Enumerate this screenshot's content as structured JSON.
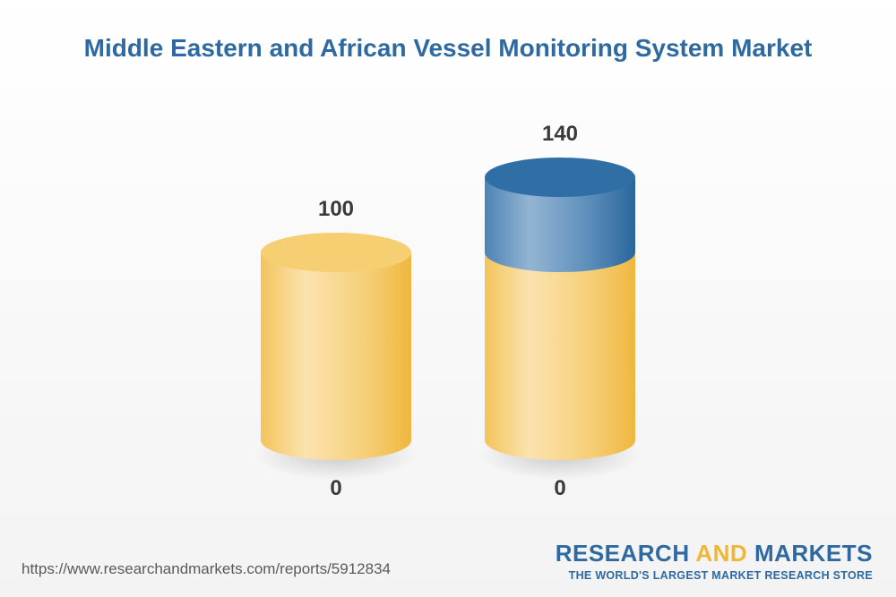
{
  "chart_data": {
    "type": "bar",
    "title": "Middle Eastern and African Vessel Monitoring System Market",
    "categories": [
      "",
      ""
    ],
    "series": [
      {
        "values": [
          100,
          100
        ]
      },
      {
        "values": [
          0,
          40
        ]
      }
    ],
    "totals": [
      100,
      140
    ],
    "base_labels": [
      "0",
      "0"
    ],
    "value_labels": [
      "100",
      "140"
    ],
    "colors": {
      "base": "#f2bd4a",
      "growth": "#2f6fa5",
      "title": "#2e6aa1"
    }
  },
  "footer": {
    "source_url": "https://www.researchandmarkets.com/reports/5912834",
    "brand_part1": "RESEARCH ",
    "brand_part2": "AND",
    "brand_part3": " MARKETS",
    "brand_tagline": "THE WORLD'S LARGEST MARKET RESEARCH STORE"
  }
}
